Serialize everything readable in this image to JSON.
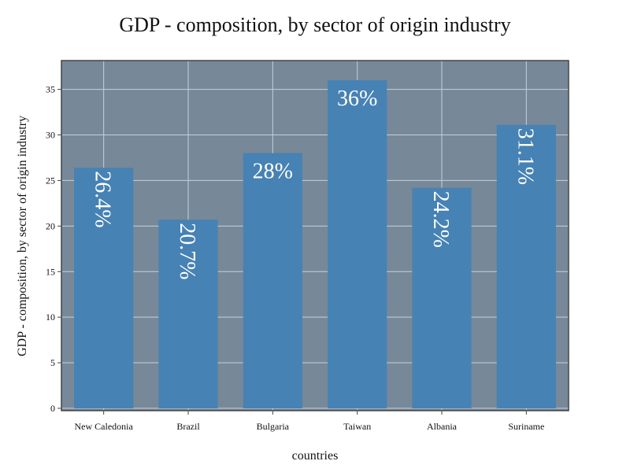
{
  "chart_data": {
    "type": "bar",
    "title": "GDP - composition, by sector of origin industry",
    "xlabel": "countries",
    "ylabel": "GDP - composition, by sector of origin industry",
    "categories": [
      "New Caledonia",
      "Brazil",
      "Bulgaria",
      "Taiwan",
      "Albania",
      "Suriname"
    ],
    "values": [
      26.4,
      20.7,
      28,
      36,
      24.2,
      31.1
    ],
    "value_labels": [
      "26.4%",
      "20.7%",
      "28%",
      "36%",
      "24.2%",
      "31.1%"
    ],
    "label_orientation": [
      "vertical",
      "vertical",
      "horizontal",
      "horizontal",
      "vertical",
      "vertical"
    ],
    "ylim": [
      0,
      38
    ],
    "yticks": [
      0,
      5,
      10,
      15,
      20,
      25,
      30,
      35
    ],
    "grid": true,
    "legend": "none",
    "colors": {
      "bar": "#4682b4",
      "plot_background": "#778899",
      "grid": "#c8d0d8",
      "frame": "#444444",
      "bar_label": "#ffffff"
    }
  }
}
